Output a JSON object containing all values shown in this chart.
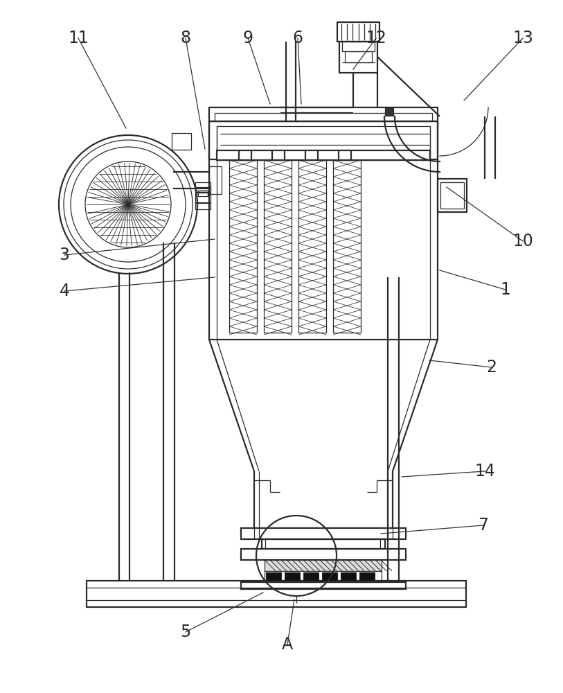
{
  "bg_color": "#ffffff",
  "line_color": "#2a2a2a",
  "lw_main": 1.6,
  "lw_thin": 0.9,
  "lw_hair": 0.5,
  "label_fs": 17,
  "annotations": [
    [
      "11",
      182,
      185,
      113,
      55
    ],
    [
      "8",
      296,
      215,
      268,
      55
    ],
    [
      "9",
      390,
      150,
      358,
      55
    ],
    [
      "6",
      435,
      150,
      430,
      55
    ],
    [
      "12",
      510,
      100,
      543,
      55
    ],
    [
      "13",
      670,
      145,
      755,
      55
    ],
    [
      "10",
      645,
      270,
      755,
      348
    ],
    [
      "1",
      635,
      390,
      730,
      418
    ],
    [
      "2",
      620,
      520,
      710,
      530
    ],
    [
      "3",
      310,
      345,
      93,
      368
    ],
    [
      "4",
      310,
      400,
      93,
      420
    ],
    [
      "14",
      580,
      688,
      700,
      680
    ],
    [
      "7",
      550,
      770,
      698,
      758
    ],
    [
      "5",
      380,
      855,
      268,
      912
    ],
    [
      "A",
      425,
      865,
      415,
      930
    ]
  ]
}
